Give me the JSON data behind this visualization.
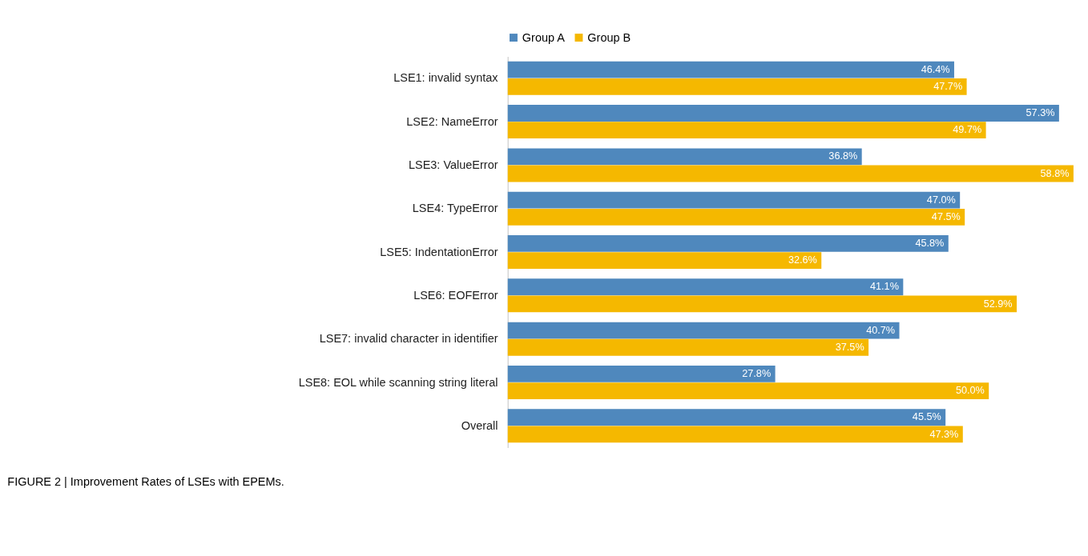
{
  "chart_data": {
    "type": "bar",
    "orientation": "horizontal",
    "title": "FIGURE 2 | Improvement Rates of LSEs with EPEMs.",
    "categories": [
      "LSE1: invalid syntax",
      "LSE2: NameError",
      "LSE3: ValueError",
      "LSE4: TypeError",
      "LSE5: IndentationError",
      "LSE6: EOFError",
      "LSE7: invalid character in identifier",
      "LSE8: EOL while scanning string literal",
      "Overall"
    ],
    "series": [
      {
        "name": "Group A",
        "color": "#4f88bd",
        "values": [
          46.4,
          57.3,
          36.8,
          47.0,
          45.8,
          41.1,
          40.7,
          27.8,
          45.5
        ],
        "value_labels": [
          "46.4%",
          "57.3%",
          "36.8%",
          "47.0%",
          "45.8%",
          "41.1%",
          "40.7%",
          "27.8%",
          "45.5%"
        ]
      },
      {
        "name": "Group B",
        "color": "#f5b800",
        "values": [
          47.7,
          49.7,
          58.8,
          47.5,
          32.6,
          52.9,
          37.5,
          50.0,
          47.3
        ],
        "value_labels": [
          "47.7%",
          "49.7%",
          "58.8%",
          "47.5%",
          "32.6%",
          "52.9%",
          "37.5%",
          "50.0%",
          "47.3%"
        ]
      }
    ],
    "legend": "top",
    "grid": false
  }
}
